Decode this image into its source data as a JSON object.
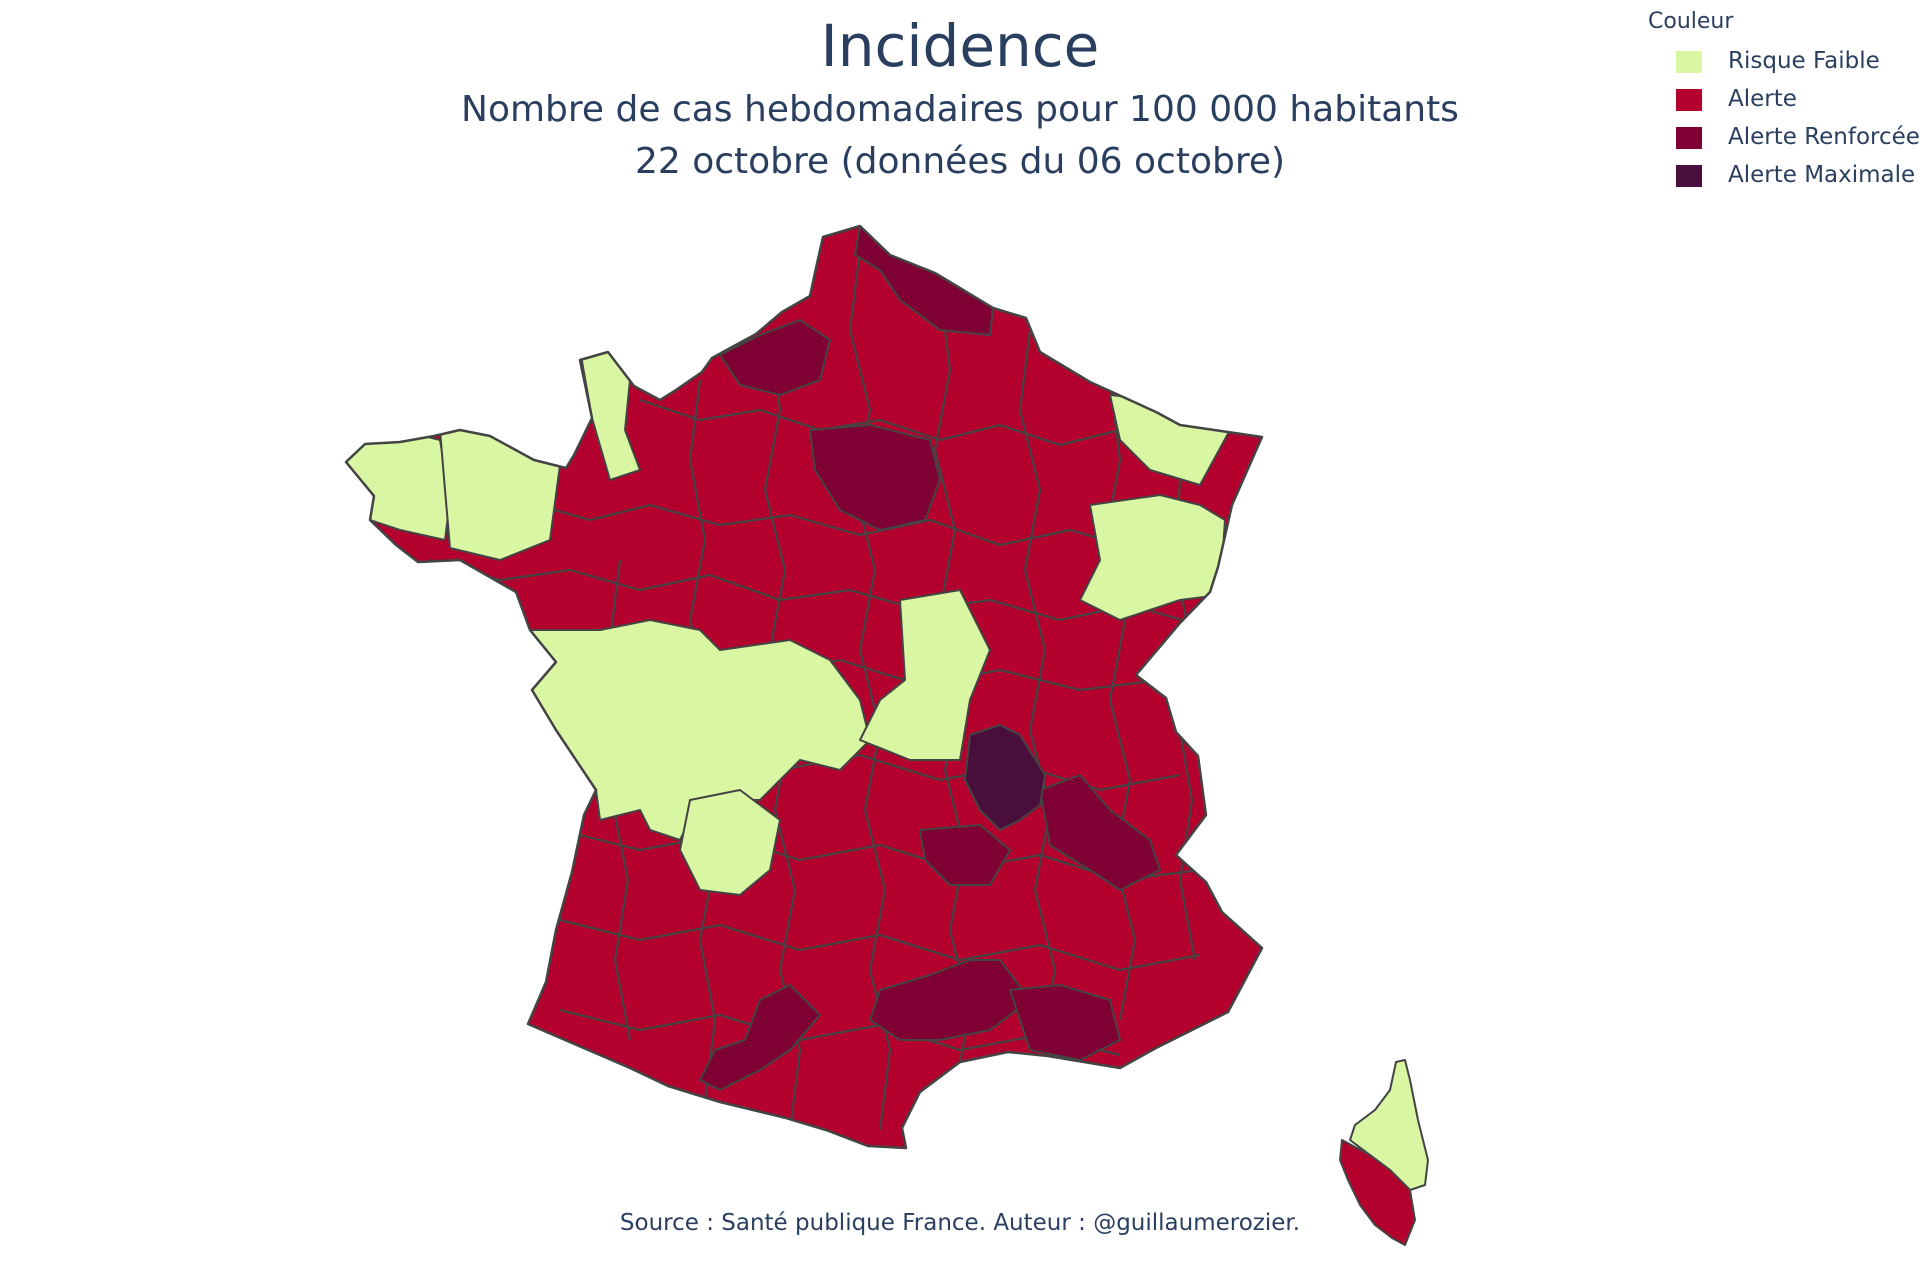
{
  "title": "Incidence",
  "subtitle_line1": "Nombre de cas hebdomadaires pour 100 000 habitants",
  "subtitle_line2": "22 octobre (données du 06 octobre)",
  "legend": {
    "title": "Couleur",
    "items": [
      {
        "key": "faible",
        "label": "Risque Faible",
        "color": "#d9f6a2"
      },
      {
        "key": "alerte",
        "label": "Alerte",
        "color": "#b3002d"
      },
      {
        "key": "renforcee",
        "label": "Alerte Renforcée",
        "color": "#7f0033"
      },
      {
        "key": "maximale",
        "label": "Alerte Maximale",
        "color": "#4a0e3b"
      }
    ]
  },
  "source": "Source : Santé publique France. Auteur : @guillaumerozier.",
  "border_color": "#444444",
  "map_regions": [
    {
      "name": "dept-nord",
      "category": "renforcee"
    },
    {
      "name": "dept-pas-de-calais",
      "category": "alerte"
    },
    {
      "name": "dept-seine-maritime",
      "category": "renforcee"
    },
    {
      "name": "dept-manche",
      "category": "faible"
    },
    {
      "name": "dept-bretagne-finistere",
      "category": "faible"
    },
    {
      "name": "dept-cotes-armor",
      "category": "faible"
    },
    {
      "name": "dept-ile-de-france",
      "category": "renforcee"
    },
    {
      "name": "dept-moselle-meuse",
      "category": "faible"
    },
    {
      "name": "dept-vosges-jura",
      "category": "faible"
    },
    {
      "name": "dept-centre-vendee",
      "category": "faible"
    },
    {
      "name": "dept-limousin",
      "category": "faible"
    },
    {
      "name": "dept-nievre-allier",
      "category": "faible"
    },
    {
      "name": "dept-rhone-loire",
      "category": "maximale"
    },
    {
      "name": "dept-isere",
      "category": "renforcee"
    },
    {
      "name": "dept-haute-loire",
      "category": "renforcee"
    },
    {
      "name": "dept-gard-herault",
      "category": "renforcee"
    },
    {
      "name": "dept-bouches-du-rhone",
      "category": "renforcee"
    },
    {
      "name": "dept-haute-garonne",
      "category": "renforcee"
    },
    {
      "name": "dept-haute-corse",
      "category": "faible"
    },
    {
      "name": "dept-corse-du-sud",
      "category": "alerte"
    }
  ]
}
